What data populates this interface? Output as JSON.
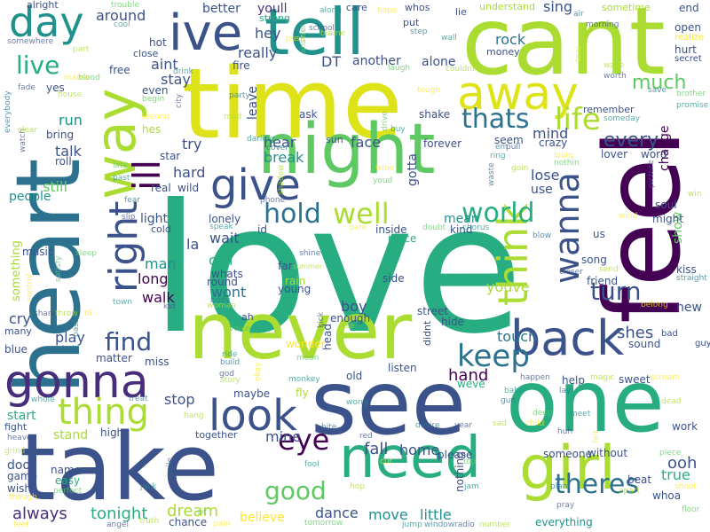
{
  "palette": {
    "c1": "#440154",
    "c2": "#3b528b",
    "c3": "#21918c",
    "c4": "#27ad81",
    "c5": "#5ec962",
    "c6": "#aadc32",
    "c7": "#dde318",
    "c8": "#fde725",
    "c9": "#2c728e",
    "c10": "#472d7b"
  },
  "words": {
    "love": "love",
    "time": "time",
    "cant": "cant",
    "heart": "heart",
    "feel": "feel",
    "never": "never",
    "see": "see",
    "one": "one",
    "take": "take",
    "night": "night",
    "tell": "tell",
    "need": "need",
    "girl": "girl",
    "way": "way",
    "ill": "ill",
    "right": "right",
    "ive": "ive",
    "day": "day",
    "gonna": "gonna",
    "away": "away",
    "back": "back",
    "look": "look",
    "think": "think",
    "wanna": "wanna",
    "give": "give",
    "thing": "thing",
    "keep": "keep",
    "life": "life",
    "hold": "hold",
    "well": "well",
    "world": "world",
    "thats": "thats",
    "theres": "theres",
    "good": "good",
    "turn": "turn",
    "eye": "eye",
    "find": "find",
    "live": "live",
    "much": "much",
    "every": "every",
    "come": "come",
    "go": "go",
    "let": "let",
    "say": "say",
    "know": "know",
    "make": "make",
    "got": "got",
    "dream": "dream",
    "tonight": "tonight",
    "always": "always",
    "dance": "dance",
    "move": "move",
    "little": "little",
    "fall": "fall",
    "home": "home",
    "hand": "hand",
    "shes": "shes",
    "touch": "touch",
    "youve": "youve",
    "ooh": "ooh",
    "true": "true",
    "stop": "stop",
    "mine": "mine",
    "believe": "believe",
    "start": "start",
    "stand": "stand",
    "walk": "walk",
    "wont": "wont",
    "call": "call",
    "wait": "wait",
    "long": "long",
    "man": "man",
    "light": "light",
    "play": "play",
    "cry": "cry",
    "still": "still",
    "talk": "talk",
    "run": "run",
    "try": "try",
    "hard": "hard",
    "break": "break",
    "hear": "hear",
    "face": "face",
    "gotta": "gotta",
    "mean": "mean",
    "lose": "lose",
    "use": "use",
    "mind": "mind",
    "change": "change",
    "stay": "stay",
    "aint": "aint",
    "really": "really",
    "leave": "leave",
    "hey": "hey",
    "youll": "youll",
    "better": "better",
    "around": "around",
    "another": "another",
    "alone": "alone",
    "rock": "rock",
    "sing": "sing",
    "show": "show",
    "people": "people",
    "something": "something",
    "la": "la",
    "boy": "boy",
    "new": "new",
    "everything": "everything",
    "whoa": "whoa",
    "beat": "beat",
    "without": "without",
    "someone": "someone",
    "please": "please",
    "nothing": "nothing",
    "weve": "weve",
    "listen": "listen",
    "street": "street",
    "enough": "enough",
    "hide": "hide",
    "kiss": "kiss",
    "us": "us",
    "soul": "soul",
    "might": "might",
    "word": "word",
    "lover": "lover",
    "song": "song",
    "friend": "friend",
    "sound": "sound",
    "work": "work",
    "help": "help",
    "sweet": "sweet",
    "maybe": "maybe",
    "together": "together",
    "wonder": "wonder",
    "fly": "fly",
    "round": "round",
    "whats": "whats",
    "young": "young",
    "rain": "rain",
    "music": "music",
    "many": "many",
    "blue": "blue",
    "matter": "matter",
    "miss": "miss",
    "chance": "chance",
    "high": "high",
    "fight": "fight",
    "door": "door",
    "game": "game",
    "wish": "wish",
    "name": "name",
    "easy": "easy",
    "yes": "yes",
    "free": "free",
    "hot": "hot",
    "even": "even",
    "hes": "hes",
    "bring": "bring",
    "real": "real",
    "wild": "wild",
    "star": "star",
    "lonely": "lonely",
    "far": "far",
    "side": "side",
    "inside": "inside",
    "place": "place",
    "kind": "kind",
    "seem": "seem",
    "forever": "forever",
    "crazy": "crazy",
    "remember": "remember",
    "shake": "shake",
    "ask": "ask",
    "sun": "sun",
    "fire": "fire",
    "DT": "DT",
    "strong": "strong",
    "care": "care",
    "understand": "understand",
    "sometime": "sometime",
    "end": "end",
    "open": "open",
    "realize": "realize",
    "hurt": "hurt",
    "secret": "secret",
    "follow": "follow",
    "money": "money",
    "lie": "lie",
    "whos": "whos",
    "hope": "hope",
    "put": "put",
    "along": "along",
    "alright": "alright",
    "somewhere": "somewhere",
    "part": "part",
    "close": "close",
    "baby": "baby",
    "yeah": "yeah",
    "oh": "oh",
    "want": "want",
    "cold": "cold",
    "speak": "speak",
    "id": "id",
    "shine": "shine",
    "summer": "summer",
    "dark": "dark",
    "doubt": "doubt",
    "chorus": "chorus",
    "blow": "blow",
    "closer": "closer",
    "send": "send",
    "belong": "belong",
    "bad": "bad",
    "guy": "guy",
    "straight": "straight",
    "heaven": "heaven",
    "grind": "grind",
    "though": "though",
    "perfect": "perfect",
    "jack": "jack",
    "smile": "smile",
    "angel": "angel",
    "truth": "truth",
    "pain": "pain",
    "tomorrow": "tomorrow",
    "jump": "jump",
    "window": "window",
    "radio": "radio",
    "number": "number",
    "feet": "feet",
    "memory": "memory",
    "sit": "sit",
    "fool": "fool",
    "bite": "bite",
    "red": "red",
    "hop": "hop",
    "cut": "cut",
    "top": "top",
    "jam": "jam",
    "plan": "plan",
    "pray": "pray",
    "apart": "apart",
    "shoot": "shoot",
    "floor": "floor",
    "whole": "whole",
    "treat": "treat",
    "watch": "watch",
    "clear": "clear",
    "roll": "roll",
    "late": "late",
    "past": "past",
    "fear": "fear",
    "slip": "slip",
    "hang": "hang",
    "control": "control",
    "satisfy": "satisfy",
    "passion": "passion",
    "chain": "chain",
    "share": "share",
    "throw": "throw",
    "til": "til",
    "sleep": "sleep",
    "town": "town",
    "body": "body",
    "kid": "kid",
    "woman": "woman",
    "ah": "ah",
    "voice": "voice",
    "ride": "ride",
    "build": "build",
    "god": "god",
    "story": "story",
    "okay": "okay",
    "moon": "moon",
    "monkey": "monkey",
    "head": "head",
    "kick": "kick",
    "rise": "rise",
    "didnt": "didnt",
    "old": "old",
    "worry": "worry",
    "desire": "desire",
    "year": "year",
    "sad": "sad",
    "child": "child",
    "deep": "deep",
    "babe": "babe",
    "gun": "gun",
    "huh": "huh",
    "dead": "dead",
    "felt": "felt",
    "piece": "piece",
    "meet": "meet",
    "lay": "lay",
    "happen": "happen",
    "magic": "magic",
    "scream": "scream",
    "light2": "light",
    "cause": "cause",
    "trouble": "trouble",
    "darling": "darling",
    "cover": "cover",
    "phone": "phone",
    "shadow": "shadow",
    "wine": "wine",
    "youd": "youd",
    "ring": "ring",
    "waste": "waste",
    "picture": "picture",
    "win": "win",
    "wind": "wind",
    "brother": "brother",
    "promise": "promise",
    "save": "save",
    "worth": "worth",
    "wake": "wake",
    "tear": "tear",
    "laugh": "laugh",
    "wall": "wall",
    "step": "step",
    "school": "school",
    "blame": "blame",
    "push": "push",
    "answer": "answer",
    "cool": "cool",
    "air": "air",
    "morning": "morning",
    "couldnt": "couldnt",
    "tough": "tough",
    "drive": "drive",
    "buy": "buy",
    "em": "em",
    "pull": "pull",
    "goin": "goin",
    "lovin": "lovin",
    "nothin": "nothin",
    "someday": "someday",
    "everybody": "everybody",
    "fade": "fade",
    "house": "house",
    "mama": "mama",
    "blood": "blood",
    "drink": "drink",
    "party": "party",
    "city": "city",
    "road": "road",
    "second": "second",
    "begin": "begin",
    "hit": "hit",
    "sky": "sky",
    "dear": "dear",
    "grow": "grow",
    "stars": "stars"
  }
}
